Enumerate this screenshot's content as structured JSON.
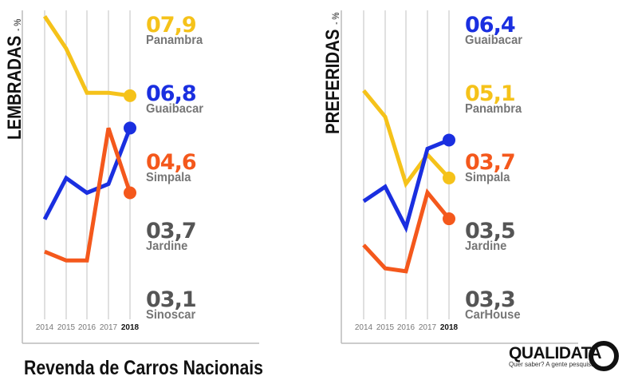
{
  "title": "Revenda de Carros Nacionais",
  "logo": {
    "brand": "QUALIDATA",
    "tagline": "Quer saber? A gente pesquisa."
  },
  "colors": {
    "Panambra": "#f5c21a",
    "Guaibacar": "#1a2fe0",
    "Simpala": "#f4581c",
    "gray": "#555555"
  },
  "chart_data": [
    {
      "type": "line",
      "title": "LEMBRADAS",
      "unit": "- %",
      "x": [
        "2014",
        "2015",
        "2016",
        "2017",
        "2018"
      ],
      "ylim": [
        0.3,
        10.8
      ],
      "series": [
        {
          "name": "Panambra",
          "values": [
            10.6,
            9.5,
            8.0,
            8.0,
            7.9
          ]
        },
        {
          "name": "Guaibacar",
          "values": [
            3.7,
            5.1,
            4.6,
            4.9,
            6.8
          ]
        },
        {
          "name": "Simpala",
          "values": [
            2.6,
            2.3,
            2.3,
            6.8,
            4.6
          ]
        }
      ],
      "ranking": [
        {
          "value": "07,9",
          "name": "Panambra",
          "color": "#f5c21a"
        },
        {
          "value": "06,8",
          "name": "Guaibacar",
          "color": "#1a2fe0"
        },
        {
          "value": "04,6",
          "name": "Simpala",
          "color": "#f4581c"
        },
        {
          "value": "03,7",
          "name": "Jardine",
          "color": "#555555"
        },
        {
          "value": "03,1",
          "name": "Sinoscar",
          "color": "#555555"
        }
      ]
    },
    {
      "type": "line",
      "title": "PREFERIDAS",
      "unit": "- %",
      "x": [
        "2014",
        "2015",
        "2016",
        "2017",
        "2018"
      ],
      "ylim": [
        0.25,
        10.85
      ],
      "series": [
        {
          "name": "Panambra",
          "values": [
            8.1,
            7.2,
            4.9,
            5.9,
            5.1
          ]
        },
        {
          "name": "Guaibacar",
          "values": [
            4.3,
            4.8,
            3.4,
            6.1,
            6.4
          ]
        },
        {
          "name": "Simpala",
          "values": [
            2.8,
            2.0,
            1.9,
            4.6,
            3.7
          ]
        }
      ],
      "ranking": [
        {
          "value": "06,4",
          "name": "Guaibacar",
          "color": "#1a2fe0"
        },
        {
          "value": "05,1",
          "name": "Panambra",
          "color": "#f5c21a"
        },
        {
          "value": "03,7",
          "name": "Simpala",
          "color": "#f4581c"
        },
        {
          "value": "03,5",
          "name": "Jardine",
          "color": "#555555"
        },
        {
          "value": "03,3",
          "name": "CarHouse",
          "color": "#555555"
        }
      ]
    }
  ]
}
